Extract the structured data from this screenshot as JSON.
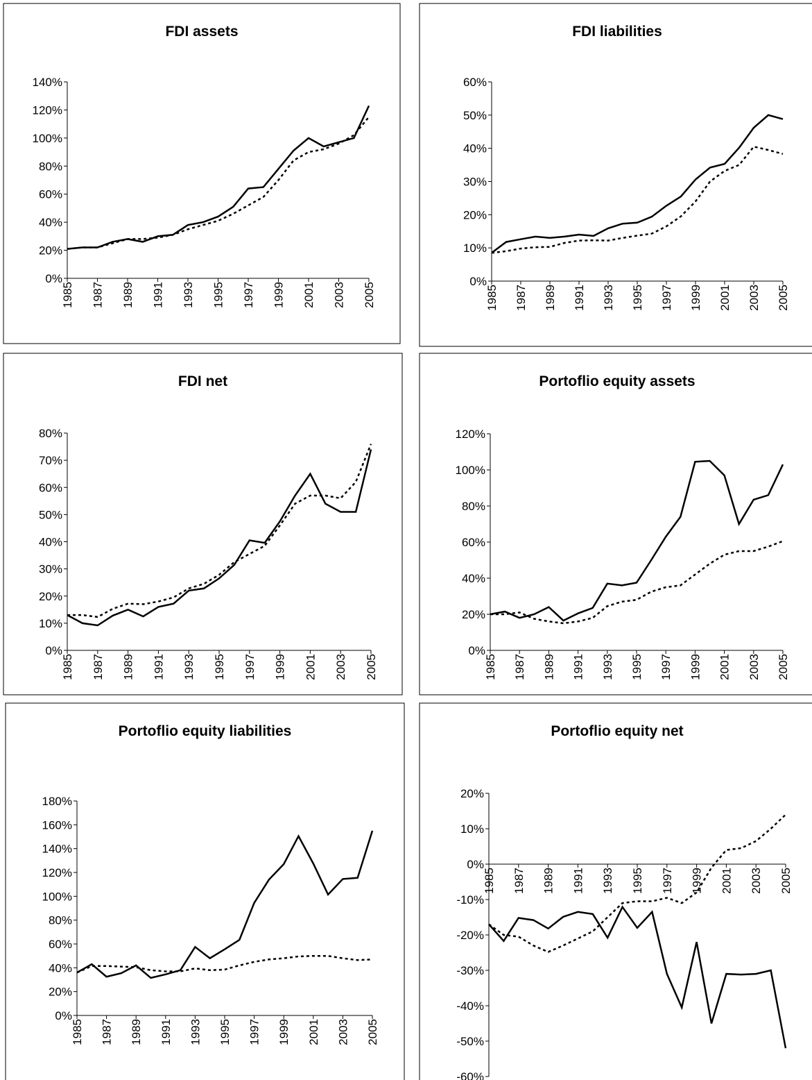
{
  "chart_data": [
    {
      "type": "line",
      "title": "FDI assets",
      "x": [
        1985,
        1986,
        1987,
        1988,
        1989,
        1990,
        1991,
        1992,
        1993,
        1994,
        1995,
        1996,
        1997,
        1998,
        1999,
        2000,
        2001,
        2002,
        2003,
        2004,
        2005
      ],
      "xlim": [
        1985,
        2005
      ],
      "xticks": [
        1985,
        1987,
        1989,
        1991,
        1993,
        1995,
        1997,
        1999,
        2001,
        2003,
        2005
      ],
      "ylim": [
        0,
        140
      ],
      "yticks": [
        {
          "value": 0,
          "label": "0%"
        },
        {
          "value": 20,
          "label": "20%"
        },
        {
          "value": 40,
          "label": "40%"
        },
        {
          "value": 60,
          "label": "60%"
        },
        {
          "value": 80,
          "label": "80%"
        },
        {
          "value": 100,
          "label": "100%"
        },
        {
          "value": 120,
          "label": "120%"
        },
        {
          "value": 140,
          "label": "140%"
        }
      ],
      "series": [
        {
          "color": "#000000",
          "dash": "solid",
          "values": [
            21,
            22,
            22,
            26,
            28,
            26,
            30,
            31,
            38,
            40,
            44,
            51,
            64,
            65,
            78,
            91,
            100,
            94,
            97,
            100,
            123
          ]
        },
        {
          "color": "#000000",
          "dash": "dotted",
          "values": [
            21,
            22,
            22,
            25,
            28,
            28,
            29,
            31,
            35,
            38,
            41,
            46,
            52,
            58,
            70,
            84,
            90,
            92,
            96,
            102,
            115
          ]
        }
      ]
    },
    {
      "type": "line",
      "title": "FDI liabilities",
      "x": [
        1985,
        1986,
        1987,
        1988,
        1989,
        1990,
        1991,
        1992,
        1993,
        1994,
        1995,
        1996,
        1997,
        1998,
        1999,
        2000,
        2001,
        2002,
        2003,
        2004,
        2005
      ],
      "xlim": [
        1985,
        2005
      ],
      "xticks": [
        1985,
        1987,
        1989,
        1991,
        1993,
        1995,
        1997,
        1999,
        2001,
        2003,
        2005
      ],
      "ylim": [
        0,
        60
      ],
      "yticks": [
        {
          "value": 0,
          "label": "0%"
        },
        {
          "value": 10,
          "label": "10%"
        },
        {
          "value": 20,
          "label": "20%"
        },
        {
          "value": 30,
          "label": "30%"
        },
        {
          "value": 40,
          "label": "40%"
        },
        {
          "value": 50,
          "label": "50%"
        },
        {
          "value": 60,
          "label": "60%"
        }
      ],
      "series": [
        {
          "color": "#000000",
          "dash": "solid",
          "values": [
            8.5,
            11.8,
            12.6,
            13.4,
            13.0,
            13.4,
            14.0,
            13.6,
            15.9,
            17.3,
            17.6,
            19.4,
            22.7,
            25.5,
            30.6,
            34.2,
            35.3,
            40.2,
            46.2,
            50.0,
            48.8
          ]
        },
        {
          "color": "#000000",
          "dash": "dotted",
          "values": [
            8.5,
            9.0,
            9.8,
            10.2,
            10.3,
            11.5,
            12.2,
            12.3,
            12.2,
            13.0,
            13.7,
            14.3,
            16.5,
            19.5,
            24,
            30,
            33.2,
            35.0,
            40.5,
            39.5,
            38.3
          ]
        }
      ]
    },
    {
      "type": "line",
      "title": "FDI net",
      "x": [
        1985,
        1986,
        1987,
        1988,
        1989,
        1990,
        1991,
        1992,
        1993,
        1994,
        1995,
        1996,
        1997,
        1998,
        1999,
        2000,
        2001,
        2002,
        2003,
        2004,
        2005
      ],
      "xlim": [
        1985,
        2005
      ],
      "xticks": [
        1985,
        1987,
        1989,
        1991,
        1993,
        1995,
        1997,
        1999,
        2001,
        2003,
        2005
      ],
      "ylim": [
        0,
        80
      ],
      "yticks": [
        {
          "value": 0,
          "label": "0%"
        },
        {
          "value": 10,
          "label": "10%"
        },
        {
          "value": 20,
          "label": "20%"
        },
        {
          "value": 30,
          "label": "30%"
        },
        {
          "value": 40,
          "label": "40%"
        },
        {
          "value": 50,
          "label": "50%"
        },
        {
          "value": 60,
          "label": "60%"
        },
        {
          "value": 70,
          "label": "70%"
        },
        {
          "value": 80,
          "label": "80%"
        }
      ],
      "series": [
        {
          "color": "#000000",
          "dash": "solid",
          "values": [
            13,
            10,
            9.2,
            12.8,
            15,
            12.5,
            16,
            17.2,
            22,
            22.8,
            26.5,
            31.5,
            40.5,
            39.6,
            47.5,
            57,
            65,
            54,
            51,
            51,
            74
          ]
        },
        {
          "color": "#000000",
          "dash": "dotted",
          "values": [
            13,
            13,
            12.3,
            15.3,
            17.2,
            17,
            18,
            19.5,
            22.8,
            24.5,
            27.8,
            32.5,
            35.5,
            38.5,
            46,
            54,
            57,
            57,
            56,
            62,
            76
          ]
        }
      ]
    },
    {
      "type": "line",
      "title": "Portoflio equity assets",
      "x": [
        1985,
        1986,
        1987,
        1988,
        1989,
        1990,
        1991,
        1992,
        1993,
        1994,
        1995,
        1996,
        1997,
        1998,
        1999,
        2000,
        2001,
        2002,
        2003,
        2004,
        2005
      ],
      "xlim": [
        1985,
        2005
      ],
      "xticks": [
        1985,
        1987,
        1989,
        1991,
        1993,
        1995,
        1997,
        1999,
        2001,
        2003,
        2005
      ],
      "ylim": [
        0,
        120
      ],
      "yticks": [
        {
          "value": 0,
          "label": "0%"
        },
        {
          "value": 20,
          "label": "20%"
        },
        {
          "value": 40,
          "label": "40%"
        },
        {
          "value": 60,
          "label": "60%"
        },
        {
          "value": 80,
          "label": "80%"
        },
        {
          "value": 100,
          "label": "100%"
        },
        {
          "value": 120,
          "label": "120%"
        }
      ],
      "series": [
        {
          "color": "#000000",
          "dash": "solid",
          "values": [
            20,
            21.5,
            18,
            20,
            24,
            16.5,
            20.5,
            23.5,
            37,
            36,
            37.5,
            50,
            63,
            74,
            104.5,
            105,
            97,
            70,
            83.5,
            86,
            103
          ]
        },
        {
          "color": "#000000",
          "dash": "dotted",
          "values": [
            20,
            20,
            21,
            17.5,
            16,
            15,
            16,
            18,
            24.5,
            27,
            28,
            32.5,
            35,
            36,
            42,
            48,
            53,
            55,
            55,
            57.5,
            60.5
          ]
        }
      ]
    },
    {
      "type": "line",
      "title": "Portoflio equity liabilities",
      "x": [
        1985,
        1986,
        1987,
        1988,
        1989,
        1990,
        1991,
        1992,
        1993,
        1994,
        1995,
        1996,
        1997,
        1998,
        1999,
        2000,
        2001,
        2002,
        2003,
        2004,
        2005
      ],
      "xlim": [
        1985,
        2005
      ],
      "xticks": [
        1985,
        1987,
        1989,
        1991,
        1993,
        1995,
        1997,
        1999,
        2001,
        2003,
        2005
      ],
      "ylim": [
        0,
        180
      ],
      "yticks": [
        {
          "value": 0,
          "label": "0%"
        },
        {
          "value": 20,
          "label": "20%"
        },
        {
          "value": 40,
          "label": "40%"
        },
        {
          "value": 60,
          "label": "60%"
        },
        {
          "value": 80,
          "label": "80%"
        },
        {
          "value": 100,
          "label": "100%"
        },
        {
          "value": 120,
          "label": "120%"
        },
        {
          "value": 140,
          "label": "140%"
        },
        {
          "value": 160,
          "label": "160%"
        },
        {
          "value": 180,
          "label": "180%"
        }
      ],
      "series": [
        {
          "color": "#000000",
          "dash": "solid",
          "values": [
            36,
            43,
            32.5,
            35.5,
            42,
            31.5,
            34.5,
            38,
            57.5,
            48,
            55.5,
            63.5,
            94.5,
            114,
            127,
            150.5,
            127.5,
            101.5,
            114.5,
            115.5,
            155
          ]
        },
        {
          "color": "#000000",
          "dash": "dotted",
          "values": [
            36,
            41.5,
            41.5,
            41,
            40.5,
            38,
            37,
            37,
            39.5,
            38,
            38.5,
            42,
            45,
            47,
            48,
            49.5,
            50,
            50,
            48,
            46.5,
            47
          ]
        }
      ]
    },
    {
      "type": "line",
      "title": "Portoflio equity net",
      "x": [
        1985,
        1986,
        1987,
        1988,
        1989,
        1990,
        1991,
        1992,
        1993,
        1994,
        1995,
        1996,
        1997,
        1998,
        1999,
        2000,
        2001,
        2002,
        2003,
        2004,
        2005
      ],
      "xlim": [
        1985,
        2005
      ],
      "xticks": [
        1985,
        1987,
        1989,
        1991,
        1993,
        1995,
        1997,
        1999,
        2001,
        2003,
        2005
      ],
      "ylim": [
        -60,
        20
      ],
      "yticks": [
        {
          "value": -60,
          "label": "-60%"
        },
        {
          "value": -50,
          "label": "-50%"
        },
        {
          "value": -40,
          "label": "-40%"
        },
        {
          "value": -30,
          "label": "-30%"
        },
        {
          "value": -20,
          "label": "-20%"
        },
        {
          "value": -10,
          "label": "-10%"
        },
        {
          "value": 0,
          "label": "0%"
        },
        {
          "value": 10,
          "label": "10%"
        },
        {
          "value": 20,
          "label": "20%"
        }
      ],
      "series": [
        {
          "color": "#000000",
          "dash": "solid",
          "values": [
            -17,
            -21.7,
            -15.2,
            -15.8,
            -18.2,
            -14.9,
            -13.5,
            -14.1,
            -20.8,
            -12.1,
            -18,
            -13.5,
            -31,
            -40.5,
            -22,
            -45,
            -31,
            -31.2,
            -31,
            -30,
            -52
          ]
        },
        {
          "color": "#000000",
          "dash": "dotted",
          "values": [
            -17,
            -20,
            -20.5,
            -23,
            -24.8,
            -23,
            -21,
            -19,
            -15,
            -11,
            -10.5,
            -10.5,
            -9.5,
            -11,
            -8,
            -1,
            4,
            4.5,
            6.5,
            10,
            14
          ]
        }
      ]
    }
  ]
}
